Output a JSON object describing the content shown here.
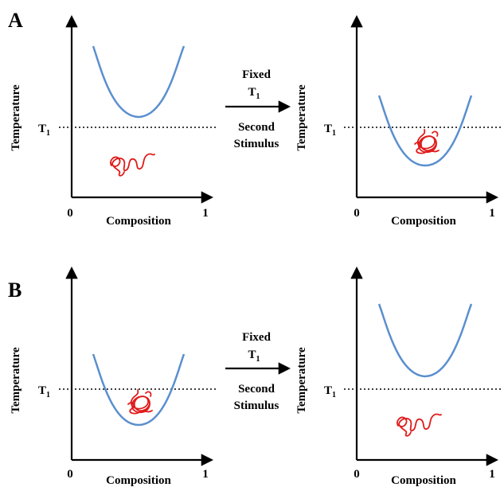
{
  "panels": [
    {
      "letter": "A"
    },
    {
      "letter": "B"
    }
  ],
  "axes": {
    "y_title": "Temperature",
    "x_title": "Composition",
    "x_min_tick": "0",
    "x_max_tick": "1",
    "threshold_label": "T",
    "threshold_sub": "1"
  },
  "transition": {
    "line1": "Fixed",
    "line2": "T",
    "line2_sub": "1",
    "line3": "Second",
    "line4": "Stimulus"
  },
  "colors": {
    "curve": "#5b8fcf",
    "coil": "#e01b1b",
    "axis": "#000000"
  }
}
